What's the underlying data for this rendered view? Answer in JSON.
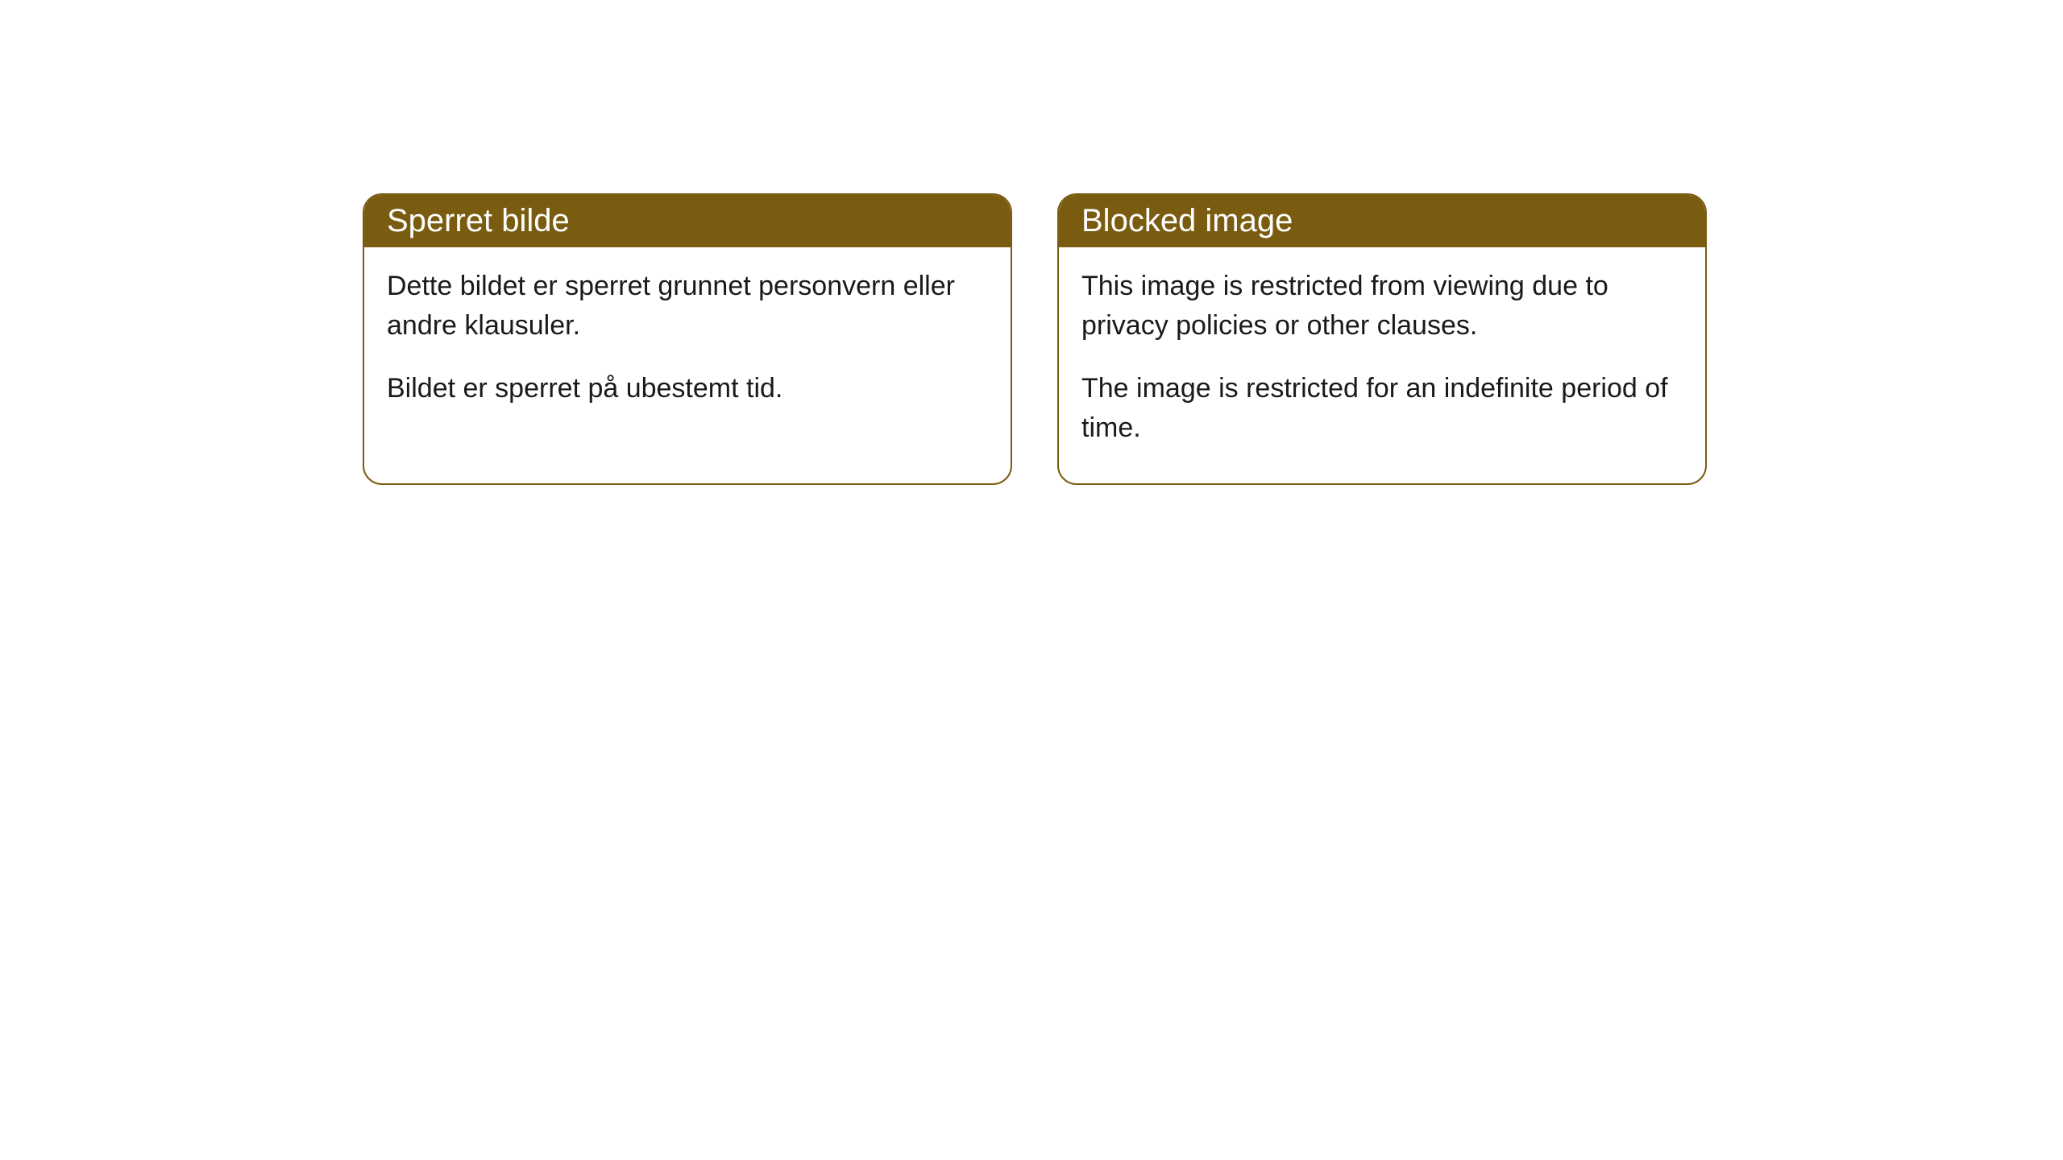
{
  "cards": [
    {
      "title": "Sperret bilde",
      "paragraph1": "Dette bildet er sperret grunnet personvern eller andre klausuler.",
      "paragraph2": "Bildet er sperret på ubestemt tid."
    },
    {
      "title": "Blocked image",
      "paragraph1": "This image is restricted from viewing due to privacy policies or other clauses.",
      "paragraph2": "The image is restricted for an indefinite period of time."
    }
  ],
  "styling": {
    "header_background": "#7a5c11",
    "header_text_color": "#ffffff",
    "card_border_color": "#7a5c11",
    "card_background": "#ffffff",
    "body_text_color": "#1a1a1a",
    "border_radius": 24,
    "header_fontsize": 40,
    "body_fontsize": 34
  }
}
